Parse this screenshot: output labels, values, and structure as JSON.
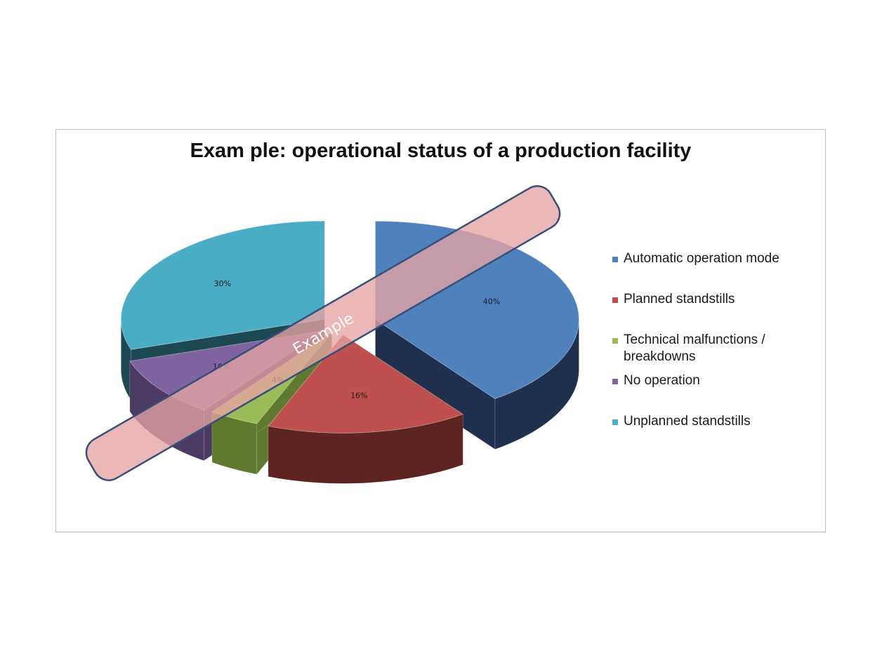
{
  "chart_data": {
    "type": "pie",
    "title": "Exam ple: operational status of a production facility",
    "categories": [
      "Automatic operation mode",
      "Planned standstills",
      "Technical malfunctions / breakdowns",
      "No operation",
      "Unplanned standstills"
    ],
    "values": [
      40,
      16,
      4,
      10,
      30
    ],
    "data_labels": [
      "40%",
      "16%",
      "4%",
      "10%",
      "30%"
    ],
    "legend_lines": [
      [
        "Automatic operation mode"
      ],
      [
        "Planned standstills"
      ],
      [
        "Technical malfunctions /",
        "breakdowns"
      ],
      [
        "No operation"
      ],
      [
        "Unplanned standstills"
      ]
    ],
    "colors": [
      "#4f81bd",
      "#c0504d",
      "#9bbb59",
      "#8064a2",
      "#4bacc6"
    ],
    "side_colors": [
      "#1f304e",
      "#5e2422",
      "#5f7a2e",
      "#4b3a63",
      "#1d4a52"
    ],
    "legend_placement": "right",
    "style": "exploded-3d"
  },
  "watermark": {
    "text": "Example",
    "fill": "#e6a3a3",
    "stroke": "#35507a"
  }
}
